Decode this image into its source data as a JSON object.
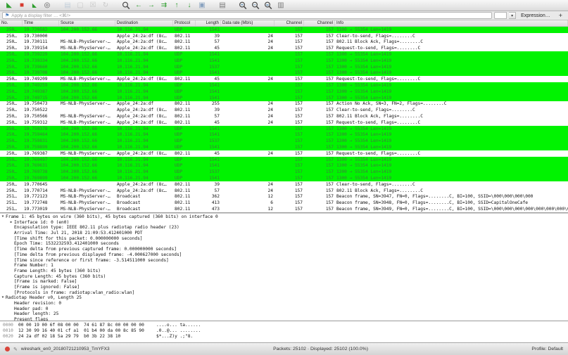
{
  "toolbar": {
    "icons": [
      {
        "name": "start-capture-icon",
        "glyph": "◣",
        "color": "#2e9e2e"
      },
      {
        "name": "stop-capture-icon",
        "glyph": "■",
        "color": "#d63a2f"
      },
      {
        "name": "restart-capture-icon",
        "glyph": "◣",
        "color": "#2e9e2e",
        "small": true
      },
      {
        "name": "capture-options-icon",
        "glyph": "◎",
        "color": "#5a5a5a"
      },
      {
        "sep": true
      },
      {
        "name": "open-file-icon",
        "glyph": "▤",
        "color": "#9fb6cc",
        "disabled": true
      },
      {
        "name": "save-file-icon",
        "glyph": "▢",
        "color": "#a9a9a9",
        "disabled": true
      },
      {
        "name": "close-file-icon",
        "glyph": "☒",
        "color": "#a9a9a9",
        "disabled": true
      },
      {
        "name": "reload-file-icon",
        "glyph": "↻",
        "color": "#a9a9a9",
        "disabled": true
      },
      {
        "sep": true
      },
      {
        "name": "find-packet-icon",
        "kind": "mag",
        "sym": ""
      },
      {
        "name": "go-back-icon",
        "glyph": "←",
        "color": "#2f9e2f"
      },
      {
        "name": "go-forward-icon",
        "glyph": "→",
        "color": "#2f9e2f"
      },
      {
        "name": "go-to-packet-icon",
        "glyph": "⇉",
        "color": "#2f9e2f"
      },
      {
        "name": "go-first-packet-icon",
        "glyph": "↑",
        "color": "#2f9e2f"
      },
      {
        "name": "go-last-packet-icon",
        "glyph": "↓",
        "color": "#2f9e2f"
      },
      {
        "name": "auto-scroll-icon",
        "glyph": "▣",
        "color": "#8aa3c0"
      },
      {
        "sep": true
      },
      {
        "name": "colorize-icon",
        "glyph": "▤",
        "color": "#7a7a7a"
      },
      {
        "sep": true
      },
      {
        "name": "zoom-in-icon",
        "kind": "mag",
        "sym": "+"
      },
      {
        "name": "zoom-out-icon",
        "kind": "mag",
        "sym": "−"
      },
      {
        "name": "zoom-reset-icon",
        "kind": "mag",
        "sym": "="
      },
      {
        "name": "resize-columns-icon",
        "glyph": "▥",
        "color": "#7a7a7a"
      }
    ]
  },
  "filter_bar": {
    "bookmark_icon": "⚑",
    "placeholder": "Apply a display filter … <⌘/>",
    "combo_arrow": "▾",
    "expression_label": "Expression…",
    "add_label": "+"
  },
  "packet_list": {
    "columns": [
      {
        "label": "No."
      },
      {
        "label": "Time"
      },
      {
        "label": "Source"
      },
      {
        "label": "Destination"
      },
      {
        "label": "Protocol"
      },
      {
        "label": "Length",
        "align": "right"
      },
      {
        "label": "Data rate (Mb/s)"
      },
      {
        "label": "Channel",
        "align": "right"
      },
      {
        "label": "Channel",
        "align": "right"
      },
      {
        "label": "Info"
      }
    ],
    "rows": [
      [
        "250…",
        "19.729582",
        "104.200.152.66",
        "10.116.21.94",
        "UDP",
        "1541",
        "",
        "157",
        "157",
        "1300 → 55354 Len=1419",
        "g"
      ],
      [
        "250…",
        "19.730000",
        "",
        "Apple_24:2a:df (8c…",
        "802.11",
        "39",
        "24",
        "157",
        "157",
        "Clear-to-send, Flags=........C",
        "w"
      ],
      [
        "250…",
        "19.730111",
        "MS-NLB-PhysServer-…",
        "Apple_24:2a:df (8c…",
        "802.11",
        "57",
        "24",
        "157",
        "157",
        "802.11 Block Ack, Flags=........C",
        "w"
      ],
      [
        "250…",
        "19.739154",
        "MS-NLB-PhysServer-…",
        "Apple_24:2a:df (8c…",
        "802.11",
        "45",
        "24",
        "157",
        "157",
        "Request-to-send, Flags=........C",
        "w"
      ],
      [
        "250…",
        "19.739229",
        "104.200.152.66",
        "10.116.21.94",
        "UDP",
        "1541",
        "",
        "157",
        "157",
        "1300 → 55354 Len=1419",
        "g"
      ],
      [
        "250…",
        "19.739334",
        "104.200.152.66",
        "10.116.21.94",
        "UDP",
        "1541",
        "",
        "157",
        "157",
        "1300 → 55354 Len=1419",
        "g"
      ],
      [
        "250…",
        "19.739660",
        "104.200.152.66",
        "10.116.21.94",
        "UDP",
        "1537",
        "",
        "157",
        "157",
        "1300 → 55354 Len=1419",
        "g"
      ],
      [
        "250…",
        "19.739708",
        "104.200.152.66",
        "10.116.21.94",
        "UDP",
        "1541",
        "",
        "157",
        "157",
        "1300 → 55354 Len=1419",
        "g"
      ],
      [
        "250…",
        "19.749209",
        "MS-NLB-PhysServer-…",
        "Apple_24:2a:df (8c…",
        "802.11",
        "45",
        "24",
        "157",
        "157",
        "Request-to-send, Flags=........C",
        "w"
      ],
      [
        "250…",
        "19.749259",
        "104.200.152.66",
        "10.116.21.94",
        "UDP",
        "1541",
        "",
        "157",
        "157",
        "1300 → 55354 Len=1419",
        "g"
      ],
      [
        "250…",
        "19.749387",
        "104.200.152.66",
        "10.116.21.94",
        "UDP",
        "1541",
        "",
        "157",
        "157",
        "1300 → 55354 Len=1419",
        "g"
      ],
      [
        "250…",
        "19.749715",
        "104.200.152.66",
        "10.116.21.94",
        "UDP",
        "1541",
        "",
        "157",
        "157",
        "1300 → 55354 Len=1419",
        "g"
      ],
      [
        "250…",
        "19.750473",
        "MS-NLB-PhysServer-…",
        "Apple_24:2a:df",
        "802.11",
        "255",
        "24",
        "157",
        "157",
        "Action No Ack, SN=3, FN=2, Flags=........C",
        "w"
      ],
      [
        "250…",
        "19.750522",
        "",
        "Apple_24:2a:df (8c…",
        "802.11",
        "39",
        "24",
        "157",
        "157",
        "Clear-to-send, Flags=........C",
        "w"
      ],
      [
        "250…",
        "19.750566",
        "MS-NLB-PhysServer-…",
        "Apple_24:2a:df (8c…",
        "802.11",
        "57",
        "24",
        "157",
        "157",
        "802.11 Block Ack, Flags=........C",
        "w"
      ],
      [
        "250…",
        "19.759312",
        "MS-NLB-PhysServer-…",
        "Apple_24:2a:df (8c…",
        "802.11",
        "45",
        "24",
        "157",
        "157",
        "Request-to-send, Flags=........C",
        "w"
      ],
      [
        "250…",
        "19.759378",
        "104.200.152.66",
        "10.116.21.94",
        "UDP",
        "1541",
        "",
        "157",
        "157",
        "1300 → 55354 Len=1419",
        "g"
      ],
      [
        "250…",
        "19.759464",
        "104.200.152.66",
        "10.116.21.94",
        "UDP",
        "1541",
        "",
        "157",
        "157",
        "1300 → 55354 Len=1419",
        "g"
      ],
      [
        "250…",
        "19.759831",
        "104.200.152.66",
        "10.116.21.94",
        "UDP",
        "1537",
        "",
        "157",
        "157",
        "1300 → 55354 Len=1419",
        "g"
      ],
      [
        "250…",
        "19.759899",
        "104.200.152.66",
        "10.116.21.94",
        "UDP",
        "1541",
        "",
        "157",
        "157",
        "1300 → 55354 Len=1419",
        "g"
      ],
      [
        "250…",
        "19.769387",
        "MS-NLB-PhysServer-…",
        "Apple_24:2a:df (8c…",
        "802.11",
        "45",
        "24",
        "157",
        "157",
        "Request-to-send, Flags=........C",
        "w"
      ],
      [
        "250…",
        "19.769497",
        "104.200.152.66",
        "10.116.21.94",
        "UDP",
        "1541",
        "",
        "157",
        "157",
        "1300 → 55354 Len=1419",
        "g"
      ],
      [
        "250…",
        "19.769631",
        "104.200.152.66",
        "10.116.21.94",
        "UDP",
        "1541",
        "",
        "157",
        "157",
        "1300 → 55354 Len=1419",
        "g"
      ],
      [
        "250…",
        "19.769738",
        "104.200.152.66",
        "10.116.21.94",
        "UDP",
        "1537",
        "",
        "157",
        "157",
        "1300 → 55354 Len=1419",
        "g"
      ],
      [
        "250…",
        "19.769899",
        "104.200.152.66",
        "10.116.21.94",
        "UDP",
        "1541",
        "",
        "157",
        "157",
        "1300 → 55354 Len=1419",
        "g"
      ],
      [
        "250…",
        "19.770645",
        "",
        "Apple_24:2a:df (8c…",
        "802.11",
        "39",
        "24",
        "157",
        "157",
        "Clear-to-send, Flags=........C",
        "w"
      ],
      [
        "250…",
        "19.770714",
        "MS-NLB-PhysServer-…",
        "Apple_24:2a:df (8c…",
        "802.11",
        "57",
        "24",
        "157",
        "157",
        "802.11 Block Ack, Flags=........C",
        "w"
      ],
      [
        "251…",
        "19.772123",
        "MS-NLB-PhysServer-…",
        "Broadcast",
        "802.11",
        "362",
        "12",
        "157",
        "157",
        "Beacon frame, SN=3947, FN=0, Flags=........C, BI=100, SSID=\\000\\000\\000\\000",
        "w"
      ],
      [
        "251…",
        "19.772748",
        "MS-NLB-PhysServer-…",
        "Broadcast",
        "802.11",
        "413",
        "6",
        "157",
        "157",
        "Beacon frame, SN=3948, FN=0, Flags=........C, BI=100, SSID=CapitalOneCafe",
        "w"
      ],
      [
        "251…",
        "19.773019",
        "MS-NLB-PhysServer-…",
        "Broadcast",
        "802.11",
        "473",
        "12",
        "157",
        "157",
        "Beacon frame, SN=3949, FN=0, Flags=........C, BI=100, SSID=\\000\\000\\000\\000\\000\\000\\000\\000\\000\\000",
        "w"
      ]
    ]
  },
  "detail_pane": {
    "lines": [
      {
        "a": "v",
        "i": 0,
        "t": "Frame 1: 45 bytes on wire (360 bits), 45 bytes captured (360 bits) on interface 0"
      },
      {
        "a": "r",
        "i": 1,
        "t": "Interface id: 0 (en0)"
      },
      {
        "a": "",
        "i": 1,
        "t": "Encapsulation type: IEEE 802.11 plus radiotap radio header (23)"
      },
      {
        "a": "",
        "i": 1,
        "t": "Arrival Time: Jul 21, 2018 21:09:53.412401000 PDT"
      },
      {
        "a": "",
        "i": 1,
        "t": "[Time shift for this packet: 0.000000000 seconds]"
      },
      {
        "a": "",
        "i": 1,
        "t": "Epoch Time: 1532232593.412401000 seconds"
      },
      {
        "a": "",
        "i": 1,
        "t": "[Time delta from previous captured frame: 0.000000000 seconds]"
      },
      {
        "a": "",
        "i": 1,
        "t": "[Time delta from previous displayed frame: -4.000627000 seconds]"
      },
      {
        "a": "",
        "i": 1,
        "t": "[Time since reference or first frame: -3.514511000 seconds]"
      },
      {
        "a": "",
        "i": 1,
        "t": "Frame Number: 1"
      },
      {
        "a": "",
        "i": 1,
        "t": "Frame Length: 45 bytes (360 bits)"
      },
      {
        "a": "",
        "i": 1,
        "t": "Capture Length: 45 bytes (360 bits)"
      },
      {
        "a": "",
        "i": 1,
        "t": "[Frame is marked: False]"
      },
      {
        "a": "",
        "i": 1,
        "t": "[Frame is ignored: False]"
      },
      {
        "a": "",
        "i": 1,
        "t": "[Protocols in frame: radiotap:wlan_radio:wlan]"
      },
      {
        "a": "v",
        "i": 0,
        "t": "Radiotap Header v0, Length 25"
      },
      {
        "a": "",
        "i": 1,
        "t": "Header revision: 0"
      },
      {
        "a": "",
        "i": 1,
        "t": "Header pad: 0"
      },
      {
        "a": "",
        "i": 1,
        "t": "Header length: 25"
      },
      {
        "a": "",
        "i": 1,
        "t": "Present flags"
      }
    ]
  },
  "hex_pane": {
    "rows": [
      {
        "o": "0000",
        "h": "00 00 19 00 6f 08 00 00  74 61 87 8c 00 00 00 00",
        "a": "....o... ta......"
      },
      {
        "o": "0010",
        "h": "12 30 99 16 40 01 cf a1  01 b4 00 da 00 8c 85 90",
        "a": ".0..@... ........"
      },
      {
        "o": "0020",
        "h": "24 2a df 02 18 5a 29 79  b0 3b 22 38 10",
        "a": "$*...Z)y .;\"8."
      }
    ]
  },
  "status_bar": {
    "expert_icon_color": "#d9443a",
    "comment_icon": "✎",
    "file_name": "wireshark_en0_20180721210953_TmYFX3",
    "packets_summary": "Packets: 25102 · Displayed: 25102 (100.0%)",
    "profile_label": "Profile: Default"
  }
}
